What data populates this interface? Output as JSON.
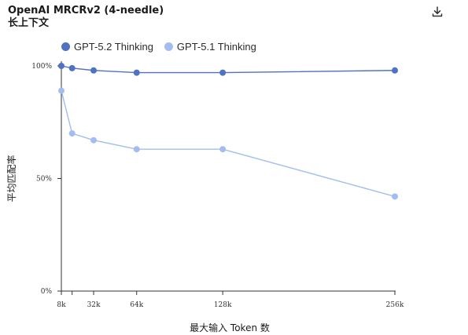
{
  "chart_data": {
    "type": "line",
    "title": "OpenAI MRCRv2 (4-needle)",
    "subtitle": "长上下文",
    "xlabel": "最大输入 Token 数",
    "ylabel": "平均匹配率",
    "x": [
      8,
      16,
      32,
      64,
      128,
      256
    ],
    "x_tick_labels": [
      {
        "x": 8,
        "label": "8k"
      },
      {
        "x": 16,
        "label": ""
      },
      {
        "x": 32,
        "label": "32k"
      },
      {
        "x": 64,
        "label": "64k"
      },
      {
        "x": 128,
        "label": "128k"
      },
      {
        "x": 256,
        "label": "256k"
      }
    ],
    "xlim": [
      8,
      256
    ],
    "y_ticks": [
      {
        "value": 0,
        "label": "0%"
      },
      {
        "value": 50,
        "label": "50%"
      },
      {
        "value": 100,
        "label": "100%"
      }
    ],
    "ylim": [
      0,
      100
    ],
    "grid": false,
    "legend_position": "top-left",
    "series": [
      {
        "name": "GPT-5.2 Thinking",
        "color": "#4f72c2",
        "values": [
          100,
          99,
          98,
          97,
          97,
          98
        ]
      },
      {
        "name": "GPT-5.1 Thinking",
        "color": "#a4bdf0",
        "values": [
          89,
          70,
          67,
          63,
          63,
          42
        ]
      }
    ]
  },
  "toolbar": {
    "download_icon": "download-icon"
  }
}
